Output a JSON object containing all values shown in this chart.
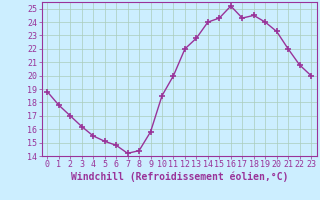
{
  "x": [
    0,
    1,
    2,
    3,
    4,
    5,
    6,
    7,
    8,
    9,
    10,
    11,
    12,
    13,
    14,
    15,
    16,
    17,
    18,
    19,
    20,
    21,
    22,
    23
  ],
  "y": [
    18.8,
    17.8,
    17.0,
    16.2,
    15.5,
    15.1,
    14.8,
    14.2,
    14.4,
    15.8,
    18.5,
    20.0,
    22.0,
    22.8,
    24.0,
    24.3,
    25.2,
    24.3,
    24.5,
    24.0,
    23.3,
    22.0,
    20.8,
    20.0
  ],
  "line_color": "#993399",
  "marker": "+",
  "markersize": 4,
  "markeredgewidth": 1.2,
  "linewidth": 1,
  "xlabel": "Windchill (Refroidissement éolien,°C)",
  "xlim": [
    -0.5,
    23.5
  ],
  "ylim": [
    14,
    25.5
  ],
  "yticks": [
    14,
    15,
    16,
    17,
    18,
    19,
    20,
    21,
    22,
    23,
    24,
    25
  ],
  "xticks": [
    0,
    1,
    2,
    3,
    4,
    5,
    6,
    7,
    8,
    9,
    10,
    11,
    12,
    13,
    14,
    15,
    16,
    17,
    18,
    19,
    20,
    21,
    22,
    23
  ],
  "bg_color": "#cceeff",
  "grid_color": "#aaccbb",
  "spine_color": "#993399",
  "tick_color": "#993399",
  "label_color": "#993399",
  "xlabel_fontsize": 7,
  "tick_fontsize": 6
}
